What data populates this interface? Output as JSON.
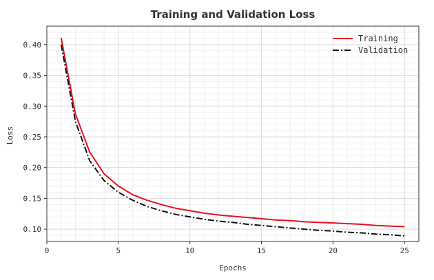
{
  "chart_data": {
    "type": "line",
    "title": "Training and Validation Loss",
    "xlabel": "Epochs",
    "ylabel": "Loss",
    "xlim": [
      0,
      26
    ],
    "ylim": [
      0.08,
      0.43
    ],
    "xticks": [
      0,
      5,
      10,
      15,
      20,
      25
    ],
    "yticks": [
      0.1,
      0.15,
      0.2,
      0.25,
      0.3,
      0.35,
      0.4
    ],
    "ytick_labels": [
      "0.10",
      "0.15",
      "0.20",
      "0.25",
      "0.30",
      "0.35",
      "0.40"
    ],
    "grid": true,
    "legend_position": "top-right",
    "x": [
      1,
      2,
      3,
      4,
      5,
      6,
      7,
      8,
      9,
      10,
      11,
      12,
      13,
      14,
      15,
      16,
      17,
      18,
      19,
      20,
      21,
      22,
      23,
      24,
      25
    ],
    "series": [
      {
        "name": "Training",
        "color": "#e8101f",
        "style": "solid",
        "values": [
          0.411,
          0.287,
          0.225,
          0.19,
          0.17,
          0.156,
          0.147,
          0.14,
          0.134,
          0.13,
          0.126,
          0.123,
          0.121,
          0.119,
          0.117,
          0.115,
          0.114,
          0.112,
          0.111,
          0.11,
          0.109,
          0.108,
          0.106,
          0.105,
          0.104
        ]
      },
      {
        "name": "Validation",
        "color": "#111111",
        "style": "dashdot",
        "values": [
          0.4,
          0.275,
          0.211,
          0.179,
          0.16,
          0.147,
          0.137,
          0.13,
          0.124,
          0.12,
          0.116,
          0.113,
          0.111,
          0.108,
          0.106,
          0.104,
          0.102,
          0.1,
          0.098,
          0.097,
          0.095,
          0.094,
          0.092,
          0.091,
          0.089
        ]
      }
    ]
  }
}
